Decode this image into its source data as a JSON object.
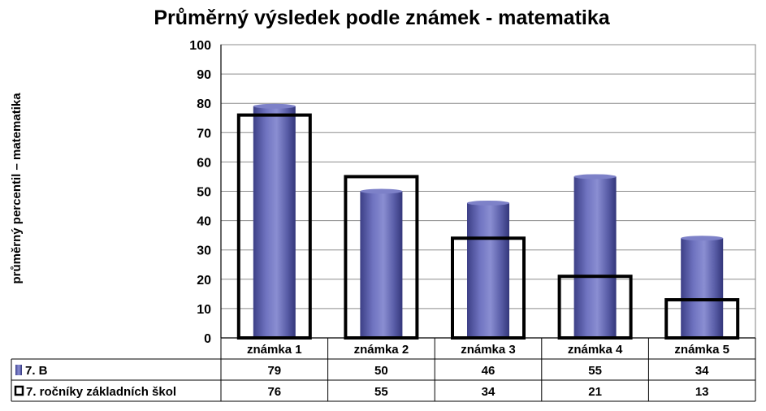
{
  "chart_data": {
    "type": "bar",
    "title": "Průměrný výsledek podle známek - matematika",
    "ylabel": "průměrný percentil – matematika",
    "xlabel": "",
    "ylim": [
      0,
      100
    ],
    "yticks": [
      "0",
      "10",
      "20",
      "30",
      "40",
      "50",
      "60",
      "70",
      "80",
      "90",
      "100"
    ],
    "categories": [
      "známka 1",
      "známka 2",
      "známka 3",
      "známka 4",
      "známka 5"
    ],
    "grid": true,
    "legend": "data-table",
    "series": [
      {
        "name": "7. B",
        "style": "filled-cylinder",
        "color": "#5a5ea8",
        "values": [
          79,
          50,
          46,
          55,
          34
        ]
      },
      {
        "name": "7. ročníky základních škol",
        "style": "outline-box",
        "color": "#000000",
        "values": [
          76,
          55,
          34,
          21,
          13
        ]
      }
    ]
  }
}
